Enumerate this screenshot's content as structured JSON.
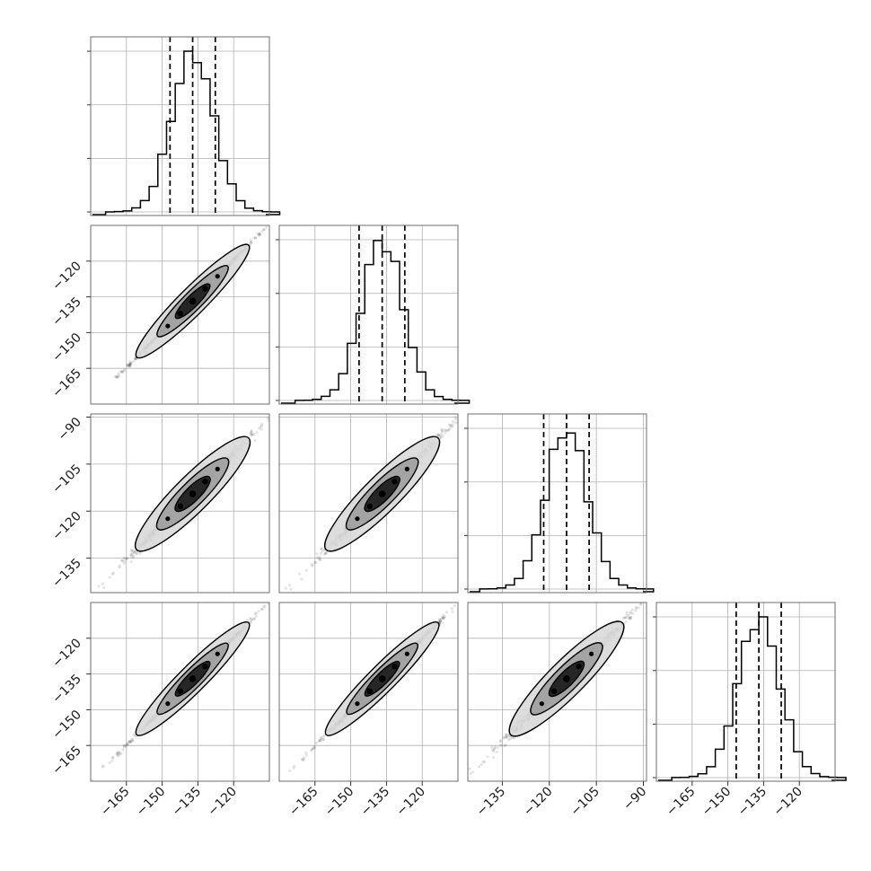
{
  "chart_data": {
    "type": "corner",
    "parameters": 4,
    "params": [
      {
        "range": [
          -180,
          -105
        ],
        "ticks": [
          -165,
          -150,
          -135,
          -120
        ],
        "tick_labels": [
          "−165",
          "−150",
          "−135",
          "−120"
        ],
        "center": -137.2,
        "sd": 8.7,
        "quantiles": [
          -146.7,
          -137.2,
          -127.7
        ]
      },
      {
        "range": [
          -180,
          -105
        ],
        "ticks": [
          -165,
          -150,
          -135,
          -120
        ],
        "tick_labels": [
          "−165",
          "−150",
          "−135",
          "−120"
        ],
        "center": -136.8,
        "sd": 8.7,
        "quantiles": [
          -146.5,
          -136.8,
          -127.3
        ]
      },
      {
        "range": [
          -146,
          -89
        ],
        "ticks": [
          -135,
          -120,
          -105,
          -90
        ],
        "tick_labels": [
          "−135",
          "−120",
          "−105",
          "−90"
        ],
        "center": -114.5,
        "sd": 6.6,
        "quantiles": [
          -121.8,
          -114.5,
          -107.3
        ]
      },
      {
        "range": [
          -180,
          -105
        ],
        "ticks": [
          -165,
          -150,
          -135,
          -120
        ],
        "tick_labels": [
          "−165",
          "−150",
          "−135",
          "−120"
        ],
        "center": -137.0,
        "sd": 8.7,
        "quantiles": [
          -146.5,
          -137.0,
          -127.6
        ]
      }
    ],
    "histograms": [
      {
        "param": 0,
        "bins": 20,
        "peak_count": 1000,
        "ylim": [
          0,
          1000
        ],
        "yticks": [
          0,
          333,
          666,
          1000
        ]
      },
      {
        "param": 1,
        "bins": 20,
        "peak_count": 1000,
        "ylim": [
          0,
          1000
        ],
        "yticks": [
          0,
          333,
          666,
          1000
        ]
      },
      {
        "param": 2,
        "bins": 20,
        "peak_count": 1000,
        "ylim": [
          0,
          1000
        ],
        "yticks": [
          0,
          333,
          666,
          1000
        ]
      },
      {
        "param": 3,
        "bins": 20,
        "peak_count": 1000,
        "ylim": [
          0,
          1000
        ],
        "yticks": [
          0,
          333,
          666,
          1000
        ]
      }
    ],
    "pairs": [
      {
        "x": 0,
        "y": 1,
        "correlation": 0.999,
        "contour_levels": [
          0.5,
          1.0,
          1.5
        ]
      },
      {
        "x": 0,
        "y": 2,
        "correlation": 0.995,
        "contour_levels": [
          0.5,
          1.0,
          1.5
        ]
      },
      {
        "x": 1,
        "y": 2,
        "correlation": 0.995,
        "contour_levels": [
          0.5,
          1.0,
          1.5
        ]
      },
      {
        "x": 0,
        "y": 3,
        "correlation": 0.999,
        "contour_levels": [
          0.5,
          1.0,
          1.5
        ]
      },
      {
        "x": 1,
        "y": 3,
        "correlation": 0.999,
        "contour_levels": [
          0.5,
          1.0,
          1.5
        ]
      },
      {
        "x": 2,
        "y": 3,
        "correlation": 0.995,
        "contour_levels": [
          0.5,
          1.0,
          1.5
        ]
      }
    ],
    "title": "",
    "xlabels": [
      "",
      "",
      "",
      ""
    ],
    "ylabels": [
      "",
      "",
      "",
      ""
    ],
    "grid": true,
    "legend": "none",
    "colors": {
      "line": "#000000",
      "grid": "#b0b0b0",
      "frame": "#6e6e6e",
      "points": "#000000",
      "contour_fill_inner": "#111111",
      "contour_fill_outer": "#d9d9d9"
    }
  }
}
